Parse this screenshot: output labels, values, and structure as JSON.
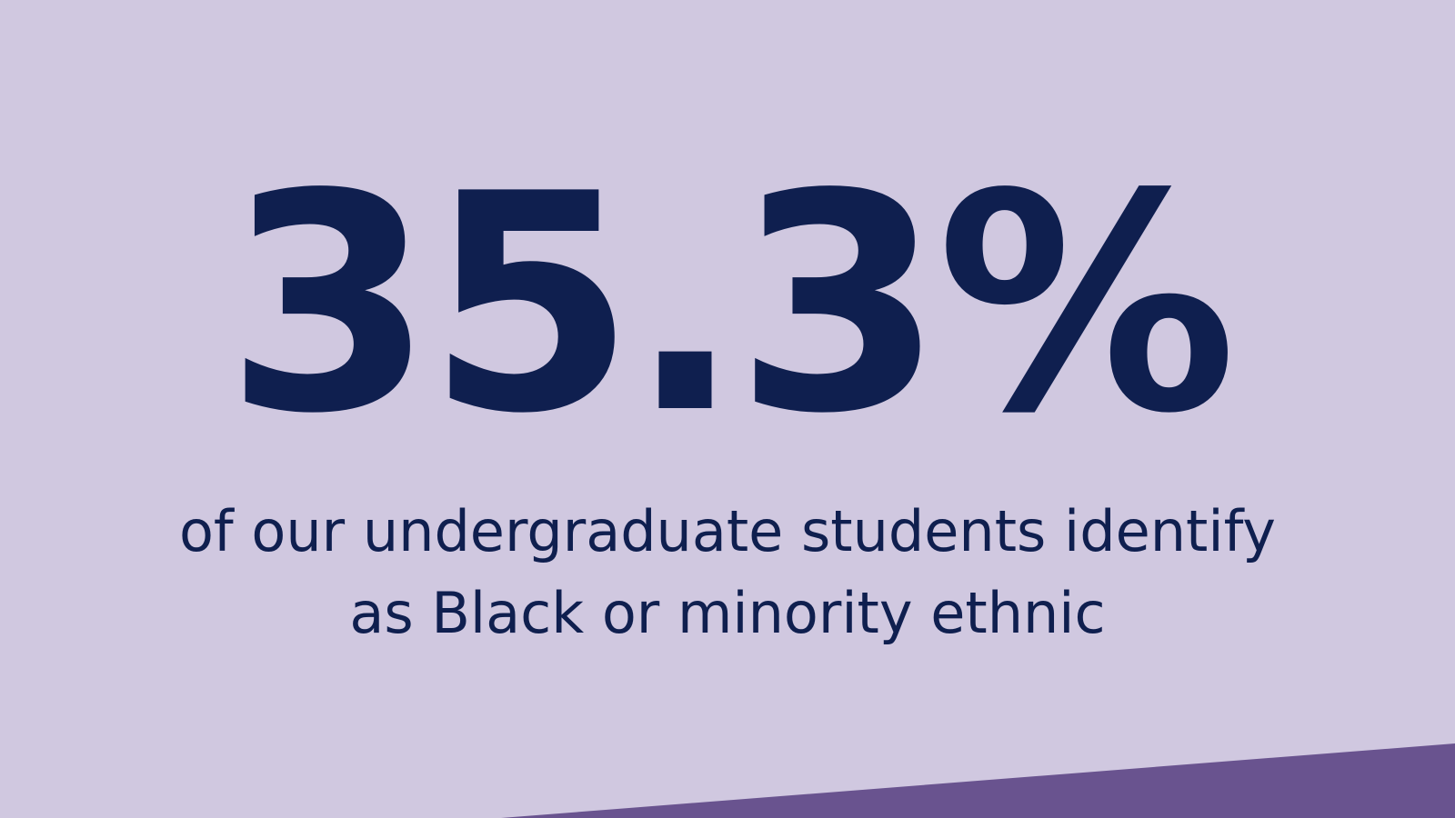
{
  "statistic": "35.3%",
  "description": {
    "line1": "of our undergraduate students identify",
    "line2": "as Black or minority ethnic"
  },
  "colors": {
    "background": "#d0c8e0",
    "text": "#0f1f4f",
    "accent_band": "#69538f"
  }
}
